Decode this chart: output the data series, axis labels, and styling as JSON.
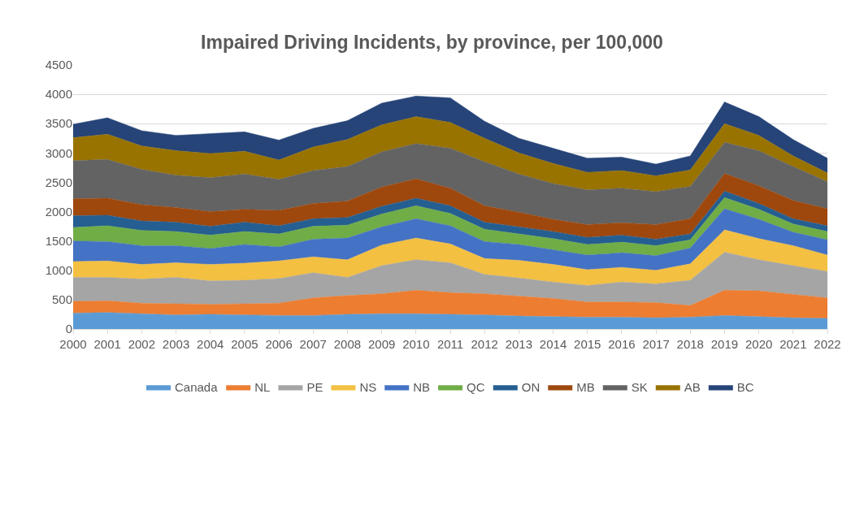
{
  "chart_data": {
    "type": "area",
    "stacked": true,
    "title": "Impaired Driving Incidents, by province, per 100,000",
    "categories": [
      "2000",
      "2001",
      "2002",
      "2003",
      "2004",
      "2005",
      "2006",
      "2007",
      "2008",
      "2009",
      "2010",
      "2011",
      "2012",
      "2013",
      "2014",
      "2015",
      "2016",
      "2017",
      "2018",
      "2019",
      "2020",
      "2021",
      "2022"
    ],
    "ylim": [
      0,
      4500
    ],
    "yticks": [
      0,
      500,
      1000,
      1500,
      2000,
      2500,
      3000,
      3500,
      4000,
      4500
    ],
    "grid": "y",
    "legend": "bottom",
    "series": [
      {
        "name": "Canada",
        "color": "#5b9bd5",
        "values": [
          270,
          280,
          260,
          240,
          250,
          240,
          230,
          230,
          250,
          260,
          260,
          250,
          240,
          220,
          210,
          200,
          200,
          190,
          200,
          230,
          210,
          190,
          180
        ]
      },
      {
        "name": "NL",
        "color": "#ed7d31",
        "values": [
          200,
          200,
          180,
          190,
          170,
          190,
          210,
          300,
          320,
          340,
          400,
          370,
          360,
          340,
          310,
          260,
          260,
          260,
          200,
          430,
          440,
          400,
          350
        ]
      },
      {
        "name": "PE",
        "color": "#a5a5a5",
        "values": [
          410,
          400,
          410,
          450,
          400,
          400,
          420,
          430,
          310,
          480,
          520,
          510,
          330,
          310,
          280,
          280,
          340,
          320,
          430,
          650,
          530,
          490,
          450
        ]
      },
      {
        "name": "NS",
        "color": "#f4c042",
        "values": [
          270,
          280,
          250,
          250,
          280,
          290,
          300,
          270,
          300,
          350,
          370,
          320,
          270,
          300,
          300,
          270,
          250,
          230,
          280,
          380,
          360,
          340,
          280
        ]
      },
      {
        "name": "NB",
        "color": "#4472c4",
        "values": [
          350,
          330,
          320,
          290,
          270,
          320,
          240,
          300,
          370,
          310,
          330,
          310,
          290,
          270,
          250,
          250,
          250,
          250,
          270,
          360,
          330,
          230,
          260
        ]
      },
      {
        "name": "QC",
        "color": "#70ad47",
        "values": [
          230,
          270,
          260,
          240,
          230,
          220,
          220,
          220,
          220,
          220,
          220,
          210,
          210,
          180,
          190,
          180,
          180,
          170,
          140,
          190,
          170,
          140,
          140
        ]
      },
      {
        "name": "ON",
        "color": "#255e91",
        "values": [
          200,
          180,
          160,
          160,
          150,
          160,
          140,
          130,
          130,
          130,
          130,
          130,
          120,
          120,
          120,
          120,
          120,
          110,
          100,
          110,
          100,
          90,
          100
        ]
      },
      {
        "name": "MB",
        "color": "#9e480e",
        "values": [
          290,
          290,
          280,
          250,
          250,
          220,
          260,
          260,
          280,
          330,
          330,
          300,
          280,
          250,
          210,
          220,
          210,
          250,
          260,
          300,
          300,
          310,
          290
        ]
      },
      {
        "name": "SK",
        "color": "#636363",
        "values": [
          650,
          660,
          600,
          550,
          580,
          600,
          530,
          560,
          590,
          600,
          600,
          680,
          750,
          650,
          610,
          590,
          590,
          560,
          550,
          530,
          600,
          580,
          460
        ]
      },
      {
        "name": "AB",
        "color": "#997300",
        "values": [
          390,
          430,
          400,
          420,
          410,
          390,
          330,
          400,
          460,
          460,
          460,
          440,
          400,
          360,
          340,
          300,
          300,
          270,
          280,
          320,
          260,
          180,
          150
        ]
      },
      {
        "name": "BC",
        "color": "#264478",
        "values": [
          230,
          280,
          260,
          260,
          340,
          330,
          340,
          320,
          320,
          370,
          350,
          420,
          290,
          250,
          260,
          240,
          230,
          200,
          240,
          370,
          320,
          280,
          250
        ]
      }
    ]
  }
}
